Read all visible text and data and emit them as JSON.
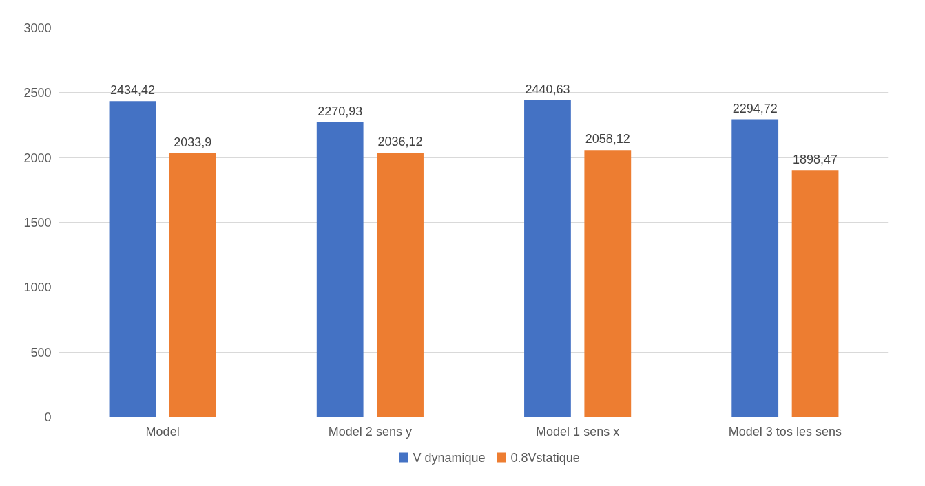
{
  "chart_data": {
    "type": "bar",
    "categories": [
      "Model",
      "Model 2 sens y",
      "Model 1 sens x",
      "Model 3 tos les sens"
    ],
    "series": [
      {
        "name": "V dynamique",
        "color": "#4472c4",
        "values": [
          2434.42,
          2270.93,
          2440.63,
          2294.72
        ],
        "value_labels": [
          "2434,42",
          "2270,93",
          "2440,63",
          "2294,72"
        ]
      },
      {
        "name": "0.8Vstatique",
        "color": "#ed7d31",
        "values": [
          2033.9,
          2036.12,
          2058.12,
          1898.47
        ],
        "value_labels": [
          "2033,9",
          "2036,12",
          "2058,12",
          "1898,47"
        ]
      }
    ],
    "ylim": [
      0,
      3000
    ],
    "yticks": [
      0,
      500,
      1000,
      1500,
      2000,
      2500,
      3000
    ],
    "grid": "y",
    "legend": "bottom"
  }
}
